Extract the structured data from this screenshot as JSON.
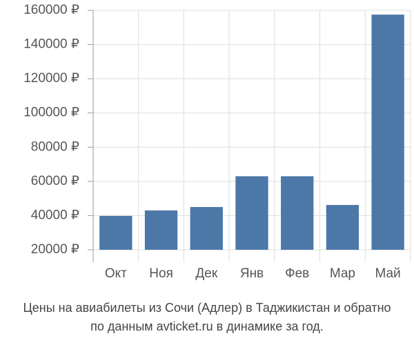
{
  "chart_data": {
    "type": "bar",
    "title": "Цены на авиабилеты из Сочи (Адлер) в Таджикистан и обратно",
    "subtitle": "по данным avticket.ru в динамике за год.",
    "categories": [
      "Окт",
      "Ноя",
      "Дек",
      "Янв",
      "Фев",
      "Мар",
      "Май"
    ],
    "values": [
      39800,
      43000,
      45000,
      63000,
      63000,
      46200,
      157500
    ],
    "color": "#4c78a8",
    "ylim": [
      20000,
      160000
    ],
    "yticks": [
      {
        "value": 20000,
        "label": "20000 ₽"
      },
      {
        "value": 40000,
        "label": "40000 ₽"
      },
      {
        "value": 60000,
        "label": "60000 ₽"
      },
      {
        "value": 80000,
        "label": "80000 ₽"
      },
      {
        "value": 100000,
        "label": "100000 ₽"
      },
      {
        "value": 120000,
        "label": "120000 ₽"
      },
      {
        "value": 140000,
        "label": "140000 ₽"
      },
      {
        "value": 160000,
        "label": "160000 ₽"
      }
    ],
    "grid": true
  }
}
